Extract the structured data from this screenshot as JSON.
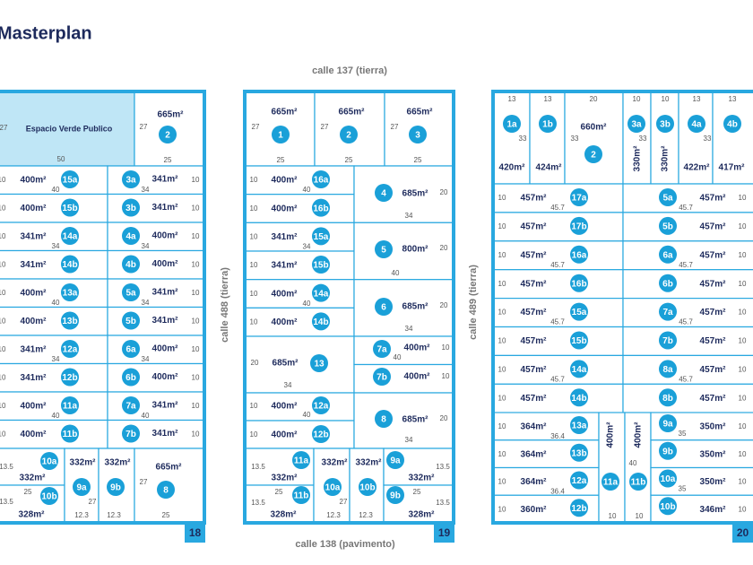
{
  "title": "Masterplan",
  "streets": {
    "top": "calle 137 (tierra)",
    "bottom": "calle 138 (pavimento)",
    "left": "calle 488 (tierra)",
    "right": "calle 489 (tierra)"
  },
  "blocks": [
    {
      "number": "18",
      "lots": [
        {
          "name": "Espacio Verde Publico",
          "dims": [
            "27",
            "50"
          ]
        },
        {
          "id": "2",
          "area": "665m²",
          "dims": [
            "27",
            "25"
          ]
        },
        {
          "id": "15a",
          "area": "400m²",
          "dims": [
            "10",
            "40"
          ]
        },
        {
          "id": "3a",
          "area": "341m²",
          "dims": [
            "10",
            "34"
          ]
        },
        {
          "id": "15b",
          "area": "400m²",
          "dims": [
            "10"
          ]
        },
        {
          "id": "3b",
          "area": "341m²",
          "dims": [
            "10"
          ]
        },
        {
          "id": "14a",
          "area": "341m²",
          "dims": [
            "10",
            "34"
          ]
        },
        {
          "id": "4a",
          "area": "400m²",
          "dims": [
            "10",
            "34"
          ]
        },
        {
          "id": "14b",
          "area": "341m²",
          "dims": [
            "10"
          ]
        },
        {
          "id": "4b",
          "area": "400m²",
          "dims": [
            "10"
          ]
        },
        {
          "id": "13a",
          "area": "400m²",
          "dims": [
            "10",
            "40"
          ]
        },
        {
          "id": "5a",
          "area": "341m²",
          "dims": [
            "10",
            "34"
          ]
        },
        {
          "id": "13b",
          "area": "400m²",
          "dims": [
            "10"
          ]
        },
        {
          "id": "5b",
          "area": "341m²",
          "dims": [
            "10"
          ]
        },
        {
          "id": "12a",
          "area": "341m²",
          "dims": [
            "10",
            "34"
          ]
        },
        {
          "id": "6a",
          "area": "400m²",
          "dims": [
            "10",
            "34"
          ]
        },
        {
          "id": "12b",
          "area": "341m²",
          "dims": [
            "10"
          ]
        },
        {
          "id": "6b",
          "area": "400m²",
          "dims": [
            "10"
          ]
        },
        {
          "id": "11a",
          "area": "400m²",
          "dims": [
            "10",
            "40"
          ]
        },
        {
          "id": "7a",
          "area": "341m²",
          "dims": [
            "10",
            "40"
          ]
        },
        {
          "id": "11b",
          "area": "400m²",
          "dims": [
            "10"
          ]
        },
        {
          "id": "7b",
          "area": "341m²",
          "dims": [
            "10"
          ]
        },
        {
          "id": "10a",
          "area": "332m²",
          "dims": [
            "13.5"
          ]
        },
        {
          "id": "10b",
          "area": "328m²",
          "dims": [
            "13.5",
            "25"
          ]
        },
        {
          "id": "9a",
          "area": "332m²",
          "dims": [
            "27",
            "12.3"
          ]
        },
        {
          "id": "9b",
          "area": "332m²",
          "dims": [
            "12.3"
          ]
        },
        {
          "id": "8",
          "area": "665m²",
          "dims": [
            "27",
            "25"
          ]
        }
      ]
    },
    {
      "number": "19",
      "lots": [
        {
          "id": "1",
          "area": "665m²",
          "dims": [
            "27",
            "25"
          ]
        },
        {
          "id": "2",
          "area": "665m²",
          "dims": [
            "27",
            "25"
          ]
        },
        {
          "id": "3",
          "area": "665m²",
          "dims": [
            "27",
            "25"
          ]
        },
        {
          "id": "16a",
          "area": "400m²",
          "dims": [
            "10",
            "40"
          ]
        },
        {
          "id": "16b",
          "area": "400m²",
          "dims": [
            "10"
          ]
        },
        {
          "id": "15a",
          "area": "341m²",
          "dims": [
            "10",
            "34"
          ]
        },
        {
          "id": "15b",
          "area": "341m²",
          "dims": [
            "10"
          ]
        },
        {
          "id": "14a",
          "area": "400m²",
          "dims": [
            "10",
            "40"
          ]
        },
        {
          "id": "14b",
          "area": "400m²",
          "dims": [
            "10"
          ]
        },
        {
          "id": "4",
          "area": "685m²",
          "dims": [
            "20",
            "34"
          ]
        },
        {
          "id": "5",
          "area": "800m²",
          "dims": [
            "20",
            "40"
          ]
        },
        {
          "id": "6",
          "area": "685m²",
          "dims": [
            "20",
            "34"
          ]
        },
        {
          "id": "13",
          "area": "685m²",
          "dims": [
            "20",
            "34"
          ]
        },
        {
          "id": "7a",
          "area": "400m²",
          "dims": [
            "10",
            "40"
          ]
        },
        {
          "id": "7b",
          "area": "400m²",
          "dims": [
            "10"
          ]
        },
        {
          "id": "12a",
          "area": "400m²",
          "dims": [
            "10",
            "40"
          ]
        },
        {
          "id": "12b",
          "area": "400m²",
          "dims": [
            "10"
          ]
        },
        {
          "id": "8",
          "area": "685m²",
          "dims": [
            "20",
            "34"
          ]
        },
        {
          "id": "11a",
          "area": "332m²",
          "dims": [
            "13.5"
          ]
        },
        {
          "id": "11b",
          "area": "328m²",
          "dims": [
            "13.5",
            "25"
          ]
        },
        {
          "id": "10a",
          "area": "332m²",
          "dims": [
            "27",
            "12.3"
          ]
        },
        {
          "id": "10b",
          "area": "332m²",
          "dims": [
            "12.3"
          ]
        },
        {
          "id": "9a",
          "area": "332m²",
          "dims": [
            "13.5"
          ]
        },
        {
          "id": "9b",
          "area": "328m²",
          "dims": [
            "13.5",
            "25"
          ]
        }
      ]
    },
    {
      "number": "20",
      "lots": [
        {
          "id": "1a",
          "area": "420m²",
          "dims": [
            "13",
            "33"
          ]
        },
        {
          "id": "1b",
          "area": "424m²",
          "dims": [
            "13"
          ]
        },
        {
          "id": "2",
          "area": "660m²",
          "dims": [
            "20",
            "33"
          ]
        },
        {
          "id": "3a",
          "area": "330m²",
          "dims": [
            "10",
            "33"
          ]
        },
        {
          "id": "3b",
          "area": "330m²",
          "dims": [
            "10"
          ]
        },
        {
          "id": "4a",
          "area": "422m²",
          "dims": [
            "13",
            "33"
          ]
        },
        {
          "id": "4b",
          "area": "417m²",
          "dims": [
            "13"
          ]
        },
        {
          "id": "17a",
          "area": "457m²",
          "dims": [
            "10",
            "45.7"
          ]
        },
        {
          "id": "5a",
          "area": "457m²",
          "dims": [
            "10",
            "45.7"
          ]
        },
        {
          "id": "17b",
          "area": "457m²",
          "dims": [
            "10"
          ]
        },
        {
          "id": "5b",
          "area": "457m²",
          "dims": [
            "10"
          ]
        },
        {
          "id": "16a",
          "area": "457m²",
          "dims": [
            "10",
            "45.7"
          ]
        },
        {
          "id": "6a",
          "area": "457m²",
          "dims": [
            "10",
            "45.7"
          ]
        },
        {
          "id": "16b",
          "area": "457m²",
          "dims": [
            "10"
          ]
        },
        {
          "id": "6b",
          "area": "457m²",
          "dims": [
            "10"
          ]
        },
        {
          "id": "15a",
          "area": "457m²",
          "dims": [
            "10",
            "45.7"
          ]
        },
        {
          "id": "7a",
          "area": "457m²",
          "dims": [
            "10",
            "45.7"
          ]
        },
        {
          "id": "15b",
          "area": "457m²",
          "dims": [
            "10"
          ]
        },
        {
          "id": "7b",
          "area": "457m²",
          "dims": [
            "10"
          ]
        },
        {
          "id": "14a",
          "area": "457m²",
          "dims": [
            "10",
            "45.7"
          ]
        },
        {
          "id": "8a",
          "area": "457m²",
          "dims": [
            "10",
            "45.7"
          ]
        },
        {
          "id": "14b",
          "area": "457m²",
          "dims": [
            "10"
          ]
        },
        {
          "id": "8b",
          "area": "457m²",
          "dims": [
            "10"
          ]
        },
        {
          "id": "13a",
          "area": "364m²",
          "dims": [
            "10",
            "36.4"
          ]
        },
        {
          "id": "13b",
          "area": "364m²",
          "dims": [
            "10"
          ]
        },
        {
          "id": "12a",
          "area": "364m²",
          "dims": [
            "10",
            "36.4"
          ]
        },
        {
          "id": "12b",
          "area": "360m²",
          "dims": [
            "10"
          ]
        },
        {
          "id": "11a",
          "area": "400m²",
          "dims": [
            "10"
          ]
        },
        {
          "id": "11b",
          "area": "400m²",
          "dims": [
            "10",
            "40"
          ]
        },
        {
          "id": "9a",
          "area": "350m²",
          "dims": [
            "10",
            "35"
          ]
        },
        {
          "id": "9b",
          "area": "350m²",
          "dims": [
            "10"
          ]
        },
        {
          "id": "10a",
          "area": "350m²",
          "dims": [
            "10",
            "35"
          ]
        },
        {
          "id": "10b",
          "area": "346m²",
          "dims": [
            "10"
          ]
        }
      ]
    }
  ]
}
